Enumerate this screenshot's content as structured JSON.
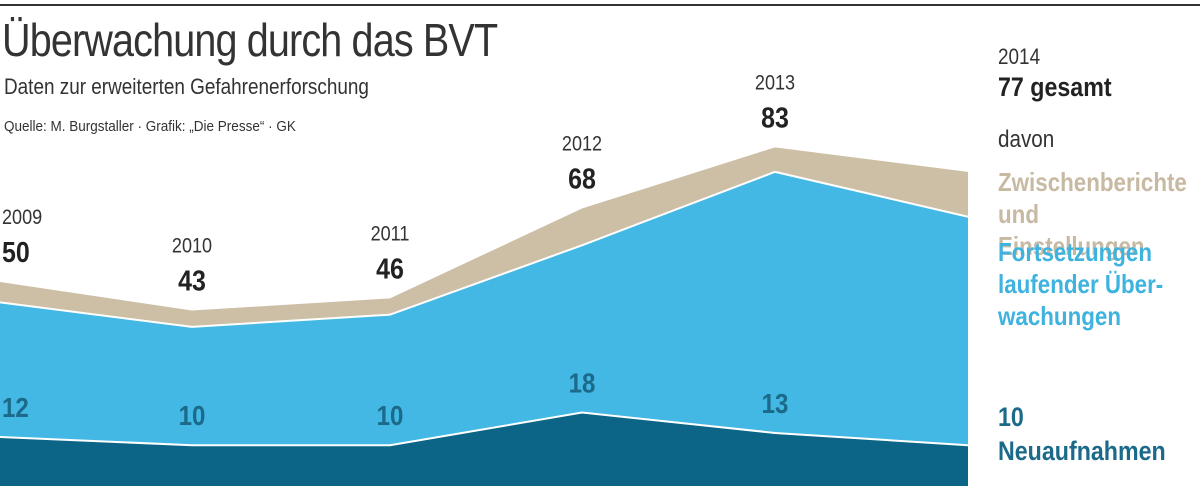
{
  "header": {
    "title": "Überwachung durch das BVT",
    "subtitle": "Daten zur erweiterten Gefahrenerforschung",
    "source": "Quelle: M. Burgstaller · Grafik: „Die Presse“ · GK"
  },
  "legend": {
    "year": "2014",
    "total": "77 gesamt",
    "davon": "davon",
    "tan": "Zwischenberichte\nund Einstellungen",
    "blue": "Fortsetzungen\nlaufender Über-\nwachungen",
    "dark_value": "10",
    "dark_label": "Neuaufnahmen"
  },
  "colors": {
    "tan": "#cdbfa6",
    "blue": "#44b8e4",
    "dark": "#0c6586",
    "dark_label": "#1b6a8a",
    "separator": "#ffffff"
  },
  "chart_data": {
    "type": "area",
    "stacked": true,
    "categories": [
      "2009",
      "2010",
      "2011",
      "2012",
      "2013",
      "2014"
    ],
    "totals": [
      50,
      43,
      46,
      68,
      83,
      77
    ],
    "series": [
      {
        "name": "Neuaufnahmen",
        "values": [
          12,
          10,
          10,
          18,
          13,
          10
        ]
      },
      {
        "name": "Fortsetzungen laufender Überwachungen",
        "values": [
          33,
          29,
          32,
          41,
          64,
          56
        ]
      },
      {
        "name": "Zwischenberichte und Einstellungen",
        "values": [
          5,
          4,
          4,
          9,
          6,
          11
        ]
      }
    ],
    "year_labels": [
      "2009",
      "2010",
      "2011",
      "2012",
      "2013",
      ""
    ],
    "total_labels": [
      "50",
      "43",
      "46",
      "68",
      "83",
      ""
    ],
    "dark_labels": [
      "12",
      "10",
      "10",
      "18",
      "13",
      ""
    ],
    "ylim": [
      0,
      90
    ]
  }
}
